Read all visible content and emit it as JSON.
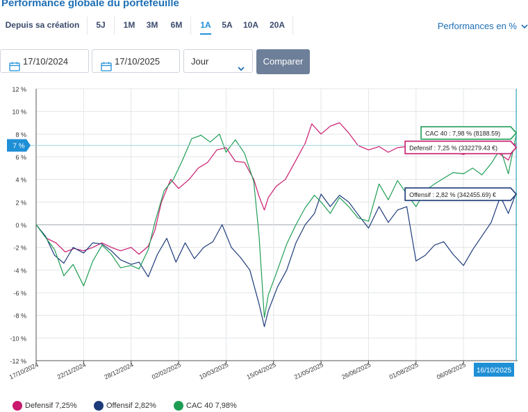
{
  "title": "Performance globale du portefeuille",
  "periods": [
    {
      "label": "Depuis sa création",
      "active": false
    },
    {
      "label": "5J",
      "active": false
    },
    {
      "label": "1M",
      "active": false
    },
    {
      "label": "3M",
      "active": false
    },
    {
      "label": "6M",
      "active": false
    },
    {
      "label": "1A",
      "active": true
    },
    {
      "label": "5A",
      "active": false
    },
    {
      "label": "10A",
      "active": false
    },
    {
      "label": "20A",
      "active": false
    }
  ],
  "mode_selector": {
    "label": "Performances en %",
    "icon": "chevron-down-icon"
  },
  "filters": {
    "start_date": "17/10/2024",
    "end_date": "17/10/2025",
    "granularity": "Jour",
    "compare_label": "Comparer",
    "calendar_icon": "calendar-icon"
  },
  "colors": {
    "defensif": "#c8196e",
    "offensif": "#1d3a7a",
    "cac40": "#1f9d55",
    "accent": "#1f8fd6",
    "button": "#6e7f99"
  },
  "chart_data": {
    "type": "line",
    "xlabel": "",
    "ylabel": "",
    "ylim": [
      -12,
      12
    ],
    "y_ticks": [
      "12 %",
      "10 %",
      "8 %",
      "6 %",
      "4 %",
      "2 %",
      "0 %",
      "-2 %",
      "-4 %",
      "-6 %",
      "-8 %",
      "-10 %",
      "-12 %"
    ],
    "y_tick_values": [
      12,
      10,
      8,
      6,
      4,
      2,
      0,
      -2,
      -4,
      -6,
      -8,
      -10,
      -12
    ],
    "x_tick_labels": [
      "17/10/2024",
      "22/11/2024",
      "28/12/2024",
      "02/02/2025",
      "10/03/2025",
      "15/04/2025",
      "21/05/2025",
      "26/06/2025",
      "01/08/2025",
      "06/09/2025"
    ],
    "x_tick_dates": [
      "2024-10-17",
      "2024-11-22",
      "2024-12-28",
      "2025-02-02",
      "2025-03-10",
      "2025-04-15",
      "2025-05-21",
      "2025-06-26",
      "2025-08-01",
      "2025-09-06"
    ],
    "x_range": [
      "2024-10-17",
      "2025-10-17"
    ],
    "grid": true,
    "legend_position": "bottom-left",
    "cursor": {
      "date_label": "16/10/2025",
      "value_label": "7 %",
      "value": 7
    },
    "tooltips": [
      {
        "series": "cac40",
        "text": "CAC 40 : 7,98 % (8188.59)"
      },
      {
        "series": "defensif",
        "text": "Defensif : 7,25 % (332279.43 €)"
      },
      {
        "series": "offensif",
        "text": "Offensif : 2,82 % (342455.69) €"
      }
    ],
    "series": [
      {
        "key": "defensif",
        "name": "Defensif",
        "legend_label": "Defensif 7,25%",
        "color": "#c8196e",
        "points": [
          [
            "2024-10-17",
            0
          ],
          [
            "2024-10-25",
            -1.2
          ],
          [
            "2024-11-01",
            -1.6
          ],
          [
            "2024-11-08",
            -2.4
          ],
          [
            "2024-11-15",
            -2.1
          ],
          [
            "2024-11-22",
            -2.3
          ],
          [
            "2024-11-29",
            -2.0
          ],
          [
            "2024-12-06",
            -1.6
          ],
          [
            "2024-12-13",
            -2.0
          ],
          [
            "2024-12-20",
            -2.3
          ],
          [
            "2024-12-28",
            -2.0
          ],
          [
            "2025-01-03",
            -2.6
          ],
          [
            "2025-01-10",
            -1.9
          ],
          [
            "2025-01-15",
            -0.5
          ],
          [
            "2025-01-20",
            2.0
          ],
          [
            "2025-01-27",
            4.0
          ],
          [
            "2025-02-02",
            3.2
          ],
          [
            "2025-02-10",
            4.0
          ],
          [
            "2025-02-17",
            5.0
          ],
          [
            "2025-02-24",
            5.5
          ],
          [
            "2025-03-03",
            6.6
          ],
          [
            "2025-03-10",
            6.8
          ],
          [
            "2025-03-17",
            5.6
          ],
          [
            "2025-03-24",
            5.5
          ],
          [
            "2025-03-31",
            4.0
          ],
          [
            "2025-04-04",
            2.5
          ],
          [
            "2025-04-08",
            1.3
          ],
          [
            "2025-04-11",
            2.4
          ],
          [
            "2025-04-17",
            3.4
          ],
          [
            "2025-04-24",
            4.0
          ],
          [
            "2025-05-02",
            5.7
          ],
          [
            "2025-05-09",
            7.2
          ],
          [
            "2025-05-14",
            8.9
          ],
          [
            "2025-05-21",
            8.0
          ],
          [
            "2025-05-28",
            8.7
          ],
          [
            "2025-06-04",
            9.0
          ],
          [
            "2025-06-11",
            8.1
          ],
          [
            "2025-06-18",
            7.0
          ],
          [
            "2025-06-26",
            6.6
          ],
          [
            "2025-07-04",
            6.9
          ],
          [
            "2025-07-11",
            6.4
          ],
          [
            "2025-07-18",
            6.8
          ],
          [
            "2025-07-25",
            6.9
          ],
          [
            "2025-08-01",
            6.3
          ],
          [
            "2025-08-08",
            6.8
          ],
          [
            "2025-08-15",
            6.6
          ],
          [
            "2025-08-22",
            6.9
          ],
          [
            "2025-08-29",
            6.4
          ],
          [
            "2025-09-06",
            6.2
          ],
          [
            "2025-09-13",
            6.5
          ],
          [
            "2025-09-20",
            6.7
          ],
          [
            "2025-09-27",
            6.8
          ],
          [
            "2025-10-04",
            6.2
          ],
          [
            "2025-10-10",
            5.7
          ],
          [
            "2025-10-16",
            7.25
          ]
        ]
      },
      {
        "key": "offensif",
        "name": "Offensif",
        "legend_label": "Offensif 2,82%",
        "color": "#1d3a7a",
        "points": [
          [
            "2024-10-17",
            0
          ],
          [
            "2024-10-24",
            -1.0
          ],
          [
            "2024-10-31",
            -2.7
          ],
          [
            "2024-11-07",
            -3.4
          ],
          [
            "2024-11-14",
            -2.0
          ],
          [
            "2024-11-22",
            -2.5
          ],
          [
            "2024-11-29",
            -1.6
          ],
          [
            "2024-12-06",
            -1.7
          ],
          [
            "2024-12-13",
            -2.3
          ],
          [
            "2024-12-20",
            -3.1
          ],
          [
            "2024-12-28",
            -3.5
          ],
          [
            "2025-01-03",
            -3.3
          ],
          [
            "2025-01-10",
            -4.6
          ],
          [
            "2025-01-17",
            -2.6
          ],
          [
            "2025-01-24",
            -1.2
          ],
          [
            "2025-01-31",
            -3.3
          ],
          [
            "2025-02-07",
            -1.6
          ],
          [
            "2025-02-14",
            -3.0
          ],
          [
            "2025-02-21",
            -2.0
          ],
          [
            "2025-02-28",
            -1.5
          ],
          [
            "2025-03-07",
            0.0
          ],
          [
            "2025-03-14",
            -2.0
          ],
          [
            "2025-03-21",
            -2.9
          ],
          [
            "2025-03-28",
            -4.0
          ],
          [
            "2025-04-04",
            -7.0
          ],
          [
            "2025-04-08",
            -9.0
          ],
          [
            "2025-04-11",
            -7.6
          ],
          [
            "2025-04-18",
            -5.5
          ],
          [
            "2025-04-25",
            -4.0
          ],
          [
            "2025-05-02",
            -1.6
          ],
          [
            "2025-05-09",
            0.0
          ],
          [
            "2025-05-16",
            1.0
          ],
          [
            "2025-05-21",
            2.7
          ],
          [
            "2025-05-28",
            1.6
          ],
          [
            "2025-06-04",
            2.6
          ],
          [
            "2025-06-11",
            2.0
          ],
          [
            "2025-06-18",
            0.9
          ],
          [
            "2025-06-26",
            -0.3
          ],
          [
            "2025-07-04",
            1.6
          ],
          [
            "2025-07-11",
            0.2
          ],
          [
            "2025-07-18",
            1.3
          ],
          [
            "2025-07-25",
            1.6
          ],
          [
            "2025-08-01",
            -3.2
          ],
          [
            "2025-08-08",
            -2.7
          ],
          [
            "2025-08-15",
            -1.8
          ],
          [
            "2025-08-22",
            -1.5
          ],
          [
            "2025-08-29",
            -2.6
          ],
          [
            "2025-09-06",
            -3.6
          ],
          [
            "2025-09-13",
            -2.2
          ],
          [
            "2025-09-20",
            -1.0
          ],
          [
            "2025-09-27",
            0.2
          ],
          [
            "2025-10-04",
            2.5
          ],
          [
            "2025-10-10",
            1.0
          ],
          [
            "2025-10-16",
            2.82
          ]
        ]
      },
      {
        "key": "cac40",
        "name": "CAC 40",
        "legend_label": "CAC 40 7,98%",
        "color": "#1f9d55",
        "points": [
          [
            "2024-10-17",
            0
          ],
          [
            "2024-10-24",
            -1.1
          ],
          [
            "2024-10-31",
            -2.2
          ],
          [
            "2024-11-07",
            -4.5
          ],
          [
            "2024-11-14",
            -3.5
          ],
          [
            "2024-11-22",
            -5.4
          ],
          [
            "2024-11-29",
            -3.2
          ],
          [
            "2024-12-06",
            -1.8
          ],
          [
            "2024-12-13",
            -2.6
          ],
          [
            "2024-12-20",
            -3.8
          ],
          [
            "2024-12-28",
            -3.6
          ],
          [
            "2025-01-03",
            -3.9
          ],
          [
            "2025-01-10",
            -2.2
          ],
          [
            "2025-01-15",
            0.2
          ],
          [
            "2025-01-22",
            3.0
          ],
          [
            "2025-01-29",
            4.0
          ],
          [
            "2025-02-05",
            5.7
          ],
          [
            "2025-02-12",
            7.6
          ],
          [
            "2025-02-19",
            7.9
          ],
          [
            "2025-02-26",
            7.3
          ],
          [
            "2025-03-05",
            8.0
          ],
          [
            "2025-03-10",
            6.4
          ],
          [
            "2025-03-17",
            7.5
          ],
          [
            "2025-03-24",
            6.3
          ],
          [
            "2025-03-31",
            3.8
          ],
          [
            "2025-04-04",
            -1.0
          ],
          [
            "2025-04-08",
            -8.2
          ],
          [
            "2025-04-11",
            -6.2
          ],
          [
            "2025-04-18",
            -4.0
          ],
          [
            "2025-04-25",
            -1.7
          ],
          [
            "2025-05-02",
            0.0
          ],
          [
            "2025-05-09",
            1.5
          ],
          [
            "2025-05-16",
            2.6
          ],
          [
            "2025-05-21",
            2.0
          ],
          [
            "2025-05-28",
            1.0
          ],
          [
            "2025-06-04",
            2.4
          ],
          [
            "2025-06-11",
            1.6
          ],
          [
            "2025-06-18",
            0.6
          ],
          [
            "2025-06-26",
            0.3
          ],
          [
            "2025-07-04",
            3.6
          ],
          [
            "2025-07-11",
            2.2
          ],
          [
            "2025-07-18",
            3.9
          ],
          [
            "2025-07-25",
            2.7
          ],
          [
            "2025-08-01",
            1.6
          ],
          [
            "2025-08-08",
            3.0
          ],
          [
            "2025-08-15",
            3.6
          ],
          [
            "2025-08-22",
            4.1
          ],
          [
            "2025-08-29",
            4.6
          ],
          [
            "2025-09-06",
            4.5
          ],
          [
            "2025-09-13",
            5.0
          ],
          [
            "2025-09-20",
            4.4
          ],
          [
            "2025-09-27",
            5.4
          ],
          [
            "2025-10-04",
            6.7
          ],
          [
            "2025-10-10",
            4.5
          ],
          [
            "2025-10-16",
            7.98
          ]
        ]
      }
    ]
  }
}
